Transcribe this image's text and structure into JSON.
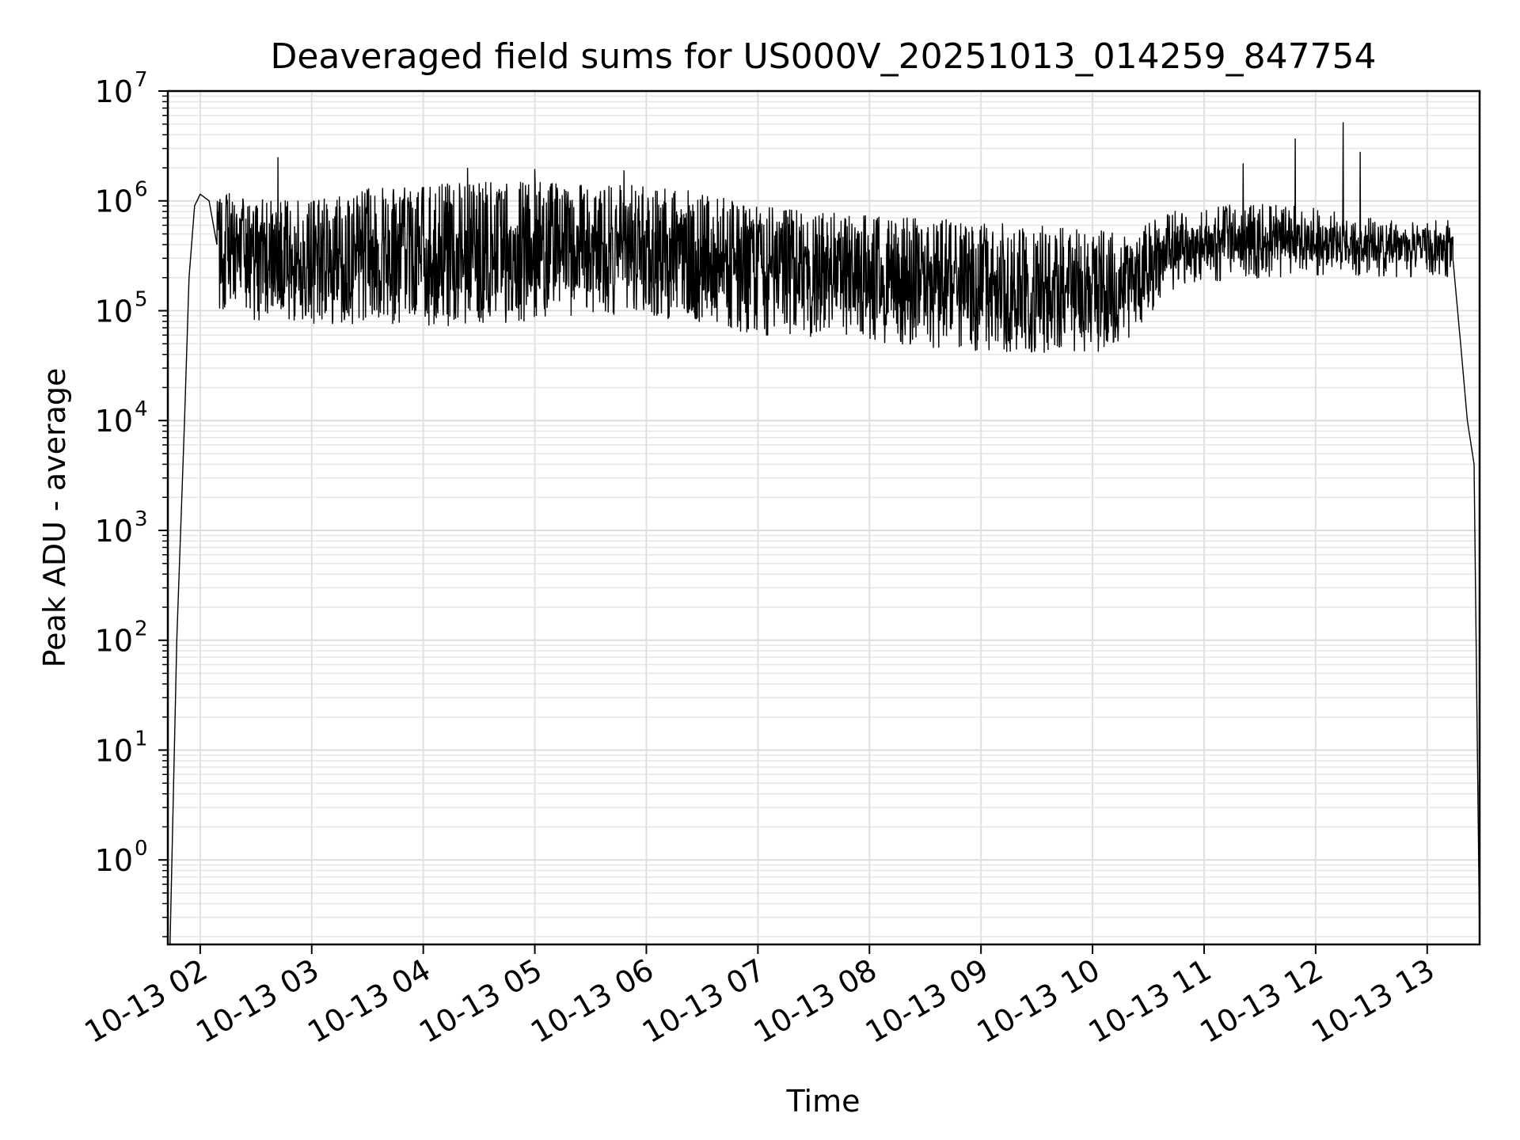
{
  "chart_data": {
    "type": "line",
    "title": "Deaveraged field sums for US000V_20251013_014259_847754",
    "xlabel": "Time",
    "ylabel": "Peak ADU - average",
    "yscale": "log",
    "ylim": [
      0.17,
      10000000
    ],
    "xlim_hours": [
      1.71,
      13.47
    ],
    "grid": true,
    "line_color": "#000000",
    "x_ticks": [
      {
        "hour": 2,
        "label": "10-13 02"
      },
      {
        "hour": 3,
        "label": "10-13 03"
      },
      {
        "hour": 4,
        "label": "10-13 04"
      },
      {
        "hour": 5,
        "label": "10-13 05"
      },
      {
        "hour": 6,
        "label": "10-13 06"
      },
      {
        "hour": 7,
        "label": "10-13 07"
      },
      {
        "hour": 8,
        "label": "10-13 08"
      },
      {
        "hour": 9,
        "label": "10-13 09"
      },
      {
        "hour": 10,
        "label": "10-13 10"
      },
      {
        "hour": 11,
        "label": "10-13 11"
      },
      {
        "hour": 12,
        "label": "10-13 12"
      },
      {
        "hour": 13,
        "label": "10-13 13"
      }
    ],
    "y_ticks": [
      {
        "exp": 0,
        "base": "10",
        "sup": "0"
      },
      {
        "exp": 1,
        "base": "10",
        "sup": "1"
      },
      {
        "exp": 2,
        "base": "10",
        "sup": "2"
      },
      {
        "exp": 3,
        "base": "10",
        "sup": "3"
      },
      {
        "exp": 4,
        "base": "10",
        "sup": "4"
      },
      {
        "exp": 5,
        "base": "10",
        "sup": "5"
      },
      {
        "exp": 6,
        "base": "10",
        "sup": "6"
      },
      {
        "exp": 7,
        "base": "10",
        "sup": "7"
      }
    ],
    "series": [
      {
        "name": "deaveraged field sum",
        "note": "dense noisy series; envelope given as [hour, lower, upper] in data units",
        "envelope": [
          [
            2.2,
            90000,
            1200000
          ],
          [
            2.5,
            80000,
            1100000
          ],
          [
            3.0,
            75000,
            1000000
          ],
          [
            3.5,
            75000,
            1300000
          ],
          [
            4.0,
            70000,
            1400000
          ],
          [
            4.5,
            75000,
            1500000
          ],
          [
            5.0,
            80000,
            1500000
          ],
          [
            5.5,
            90000,
            1400000
          ],
          [
            6.0,
            90000,
            1400000
          ],
          [
            6.5,
            75000,
            1200000
          ],
          [
            7.0,
            60000,
            900000
          ],
          [
            7.5,
            55000,
            800000
          ],
          [
            8.0,
            50000,
            750000
          ],
          [
            8.5,
            45000,
            700000
          ],
          [
            9.0,
            42000,
            650000
          ],
          [
            9.5,
            40000,
            600000
          ],
          [
            10.0,
            40000,
            550000
          ],
          [
            10.4,
            60000,
            600000
          ],
          [
            10.7,
            150000,
            800000
          ],
          [
            11.0,
            180000,
            900000
          ],
          [
            11.5,
            190000,
            1000000
          ],
          [
            12.0,
            200000,
            900000
          ],
          [
            12.5,
            200000,
            700000
          ],
          [
            13.0,
            200000,
            650000
          ],
          [
            13.2,
            200000,
            700000
          ]
        ],
        "key_points": [
          [
            1.73,
            0.17
          ],
          [
            1.79,
            100
          ],
          [
            1.86,
            10000
          ],
          [
            1.9,
            200000
          ],
          [
            1.95,
            900000
          ],
          [
            2.0,
            1150000
          ],
          [
            2.08,
            1000000
          ],
          [
            2.15,
            400000
          ],
          [
            13.23,
            300000
          ],
          [
            13.3,
            50000
          ],
          [
            13.36,
            10000
          ],
          [
            13.42,
            4000
          ],
          [
            13.47,
            0.17
          ]
        ],
        "spikes": [
          [
            2.7,
            2500000
          ],
          [
            4.4,
            2000000
          ],
          [
            5.0,
            1950000
          ],
          [
            5.8,
            1900000
          ],
          [
            11.35,
            2200000
          ],
          [
            11.82,
            3700000
          ],
          [
            12.25,
            5200000
          ],
          [
            12.4,
            2800000
          ]
        ]
      }
    ]
  }
}
